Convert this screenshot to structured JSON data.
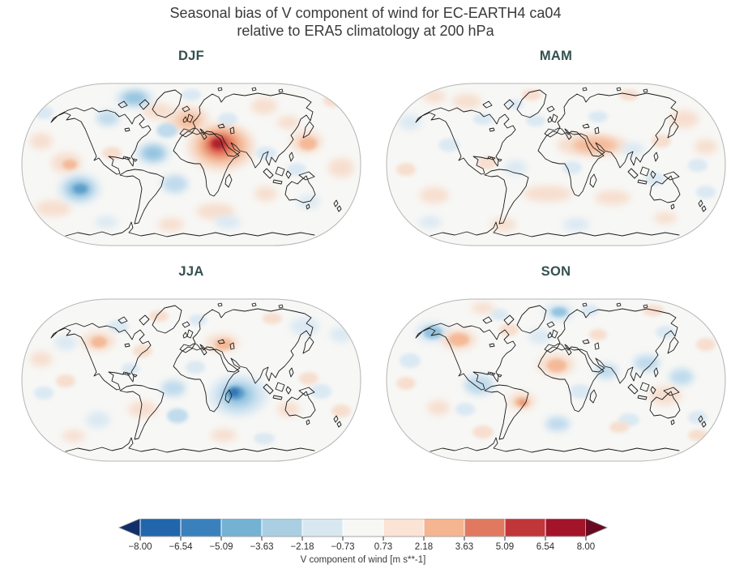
{
  "figure": {
    "title_line1": "Seasonal bias of V component of wind for EC-EARTH4 ca04",
    "title_line2": "relative to ERA5 climatology at 200 hPa"
  },
  "panels": [
    {
      "label": "DJF"
    },
    {
      "label": "MAM"
    },
    {
      "label": "JJA"
    },
    {
      "label": "SON"
    }
  ],
  "colorbar": {
    "label": "V component of wind [m s**-1]",
    "ticks": [
      "−8.00",
      "−6.54",
      "−5.09",
      "−3.63",
      "−2.18",
      "−0.73",
      "0.73",
      "2.18",
      "3.63",
      "5.09",
      "6.54",
      "8.00"
    ],
    "segment_colors": [
      "#2166ac",
      "#3a80bc",
      "#74b2d4",
      "#aacfe3",
      "#d7e8f1",
      "#f7f7f6",
      "#fbe3d5",
      "#f5b590",
      "#e07960",
      "#c13639",
      "#a31329"
    ],
    "under_color": "#11306b",
    "over_color": "#6a0a22",
    "tick_color": "#333333",
    "outline_color": "#8a8a8a"
  },
  "map": {
    "ocean_color": "#f7f7f5",
    "border_color": "#b5b5b5",
    "coast_color": "#1a1a1a",
    "palette": {
      "r1": "#f7ddcc",
      "r2": "#f3b795",
      "r3": "#e8896a",
      "r4": "#d0493f",
      "r5": "#ab1f2c",
      "b1": "#d9e8f2",
      "b2": "#bcd9ec",
      "b3": "#8fc1de",
      "b4": "#5b9cc9",
      "b5": "#2e6fb3"
    },
    "fields": {
      "DJF": [
        [
          247,
          92,
          42,
          30,
          "r1"
        ],
        [
          205,
          58,
          27,
          16,
          "r1"
        ],
        [
          168,
          48,
          18,
          10,
          "r1"
        ],
        [
          352,
          86,
          20,
          14,
          "r1"
        ],
        [
          300,
          42,
          16,
          10,
          "r1"
        ],
        [
          56,
          112,
          19,
          13,
          "r1"
        ],
        [
          25,
          85,
          14,
          10,
          "r1"
        ],
        [
          40,
          168,
          22,
          10,
          "r1"
        ],
        [
          112,
          100,
          12,
          8,
          "r1"
        ],
        [
          240,
          172,
          24,
          10,
          "r1"
        ],
        [
          395,
          118,
          16,
          12,
          "r1"
        ],
        [
          330,
          62,
          14,
          8,
          "r1"
        ],
        [
          385,
          35,
          12,
          8,
          "r1"
        ],
        [
          185,
          188,
          16,
          8,
          "r1"
        ],
        [
          302,
          150,
          14,
          9,
          "r1"
        ],
        [
          72,
          144,
          27,
          19,
          "b1"
        ],
        [
          140,
          32,
          24,
          12,
          "b1"
        ],
        [
          107,
          57,
          14,
          9,
          "b2"
        ],
        [
          180,
          72,
          13,
          9,
          "b2"
        ],
        [
          163,
          100,
          22,
          14,
          "b1"
        ],
        [
          190,
          138,
          16,
          11,
          "b2"
        ],
        [
          255,
          58,
          12,
          8,
          "b1"
        ],
        [
          302,
          100,
          13,
          8,
          "b1"
        ],
        [
          340,
          120,
          12,
          8,
          "b1"
        ],
        [
          255,
          185,
          16,
          8,
          "b1"
        ],
        [
          105,
          185,
          14,
          7,
          "b1"
        ],
        [
          28,
          50,
          12,
          8,
          "b1"
        ],
        [
          210,
          28,
          12,
          7,
          "b1"
        ],
        [
          355,
          160,
          14,
          8,
          "b1"
        ],
        [
          247,
          91,
          31,
          22,
          "r2"
        ],
        [
          246,
          90,
          21,
          15,
          "r3"
        ],
        [
          245,
          89,
          14,
          10,
          "r4"
        ],
        [
          243,
          88,
          8,
          6,
          "r5"
        ],
        [
          207,
          60,
          14,
          9,
          "r2"
        ],
        [
          354,
          88,
          11,
          8,
          "r2"
        ],
        [
          60,
          114,
          9,
          6,
          "r2"
        ],
        [
          163,
          100,
          14,
          9,
          "b3"
        ],
        [
          72,
          144,
          17,
          12,
          "b3"
        ],
        [
          73,
          144,
          9,
          6,
          "b4"
        ],
        [
          140,
          32,
          15,
          8,
          "b3"
        ]
      ],
      "MAM": [
        [
          255,
          90,
          44,
          14,
          "r1"
        ],
        [
          100,
          36,
          18,
          9,
          "r1"
        ],
        [
          60,
          30,
          14,
          8,
          "r1"
        ],
        [
          368,
          58,
          18,
          11,
          "r1"
        ],
        [
          395,
          92,
          14,
          9,
          "r1"
        ],
        [
          340,
          85,
          12,
          8,
          "r1"
        ],
        [
          60,
          152,
          18,
          10,
          "r1"
        ],
        [
          145,
          188,
          16,
          8,
          "r1"
        ],
        [
          200,
          150,
          30,
          10,
          "r1"
        ],
        [
          280,
          155,
          22,
          9,
          "r1"
        ],
        [
          180,
          28,
          12,
          7,
          "r1"
        ],
        [
          300,
          28,
          12,
          7,
          "r1"
        ],
        [
          25,
          120,
          12,
          8,
          "r1"
        ],
        [
          125,
          112,
          12,
          8,
          "r1"
        ],
        [
          345,
          180,
          14,
          7,
          "r1"
        ],
        [
          30,
          62,
          14,
          9,
          "b1"
        ],
        [
          78,
          90,
          13,
          8,
          "b1"
        ],
        [
          160,
          118,
          14,
          9,
          "b1"
        ],
        [
          230,
          118,
          12,
          8,
          "b1"
        ],
        [
          305,
          95,
          14,
          8,
          "b1"
        ],
        [
          332,
          132,
          12,
          8,
          "b1"
        ],
        [
          235,
          188,
          16,
          8,
          "b1"
        ],
        [
          120,
          58,
          12,
          7,
          "b1"
        ],
        [
          262,
          55,
          12,
          7,
          "b1"
        ],
        [
          395,
          148,
          12,
          8,
          "b1"
        ],
        [
          55,
          185,
          14,
          7,
          "b1"
        ],
        [
          185,
          60,
          12,
          7,
          "b1"
        ],
        [
          385,
          115,
          12,
          8,
          "b1"
        ],
        [
          160,
          40,
          10,
          6,
          "b1"
        ],
        [
          258,
          90,
          27,
          9,
          "r2"
        ]
      ],
      "JJA": [
        [
          268,
          133,
          36,
          26,
          "b1"
        ],
        [
          350,
          48,
          18,
          11,
          "b1"
        ],
        [
          395,
          58,
          14,
          9,
          "b1"
        ],
        [
          55,
          68,
          14,
          9,
          "b1"
        ],
        [
          120,
          48,
          13,
          8,
          "b1"
        ],
        [
          188,
          124,
          15,
          10,
          "b2"
        ],
        [
          193,
          158,
          13,
          9,
          "b2"
        ],
        [
          95,
          163,
          15,
          10,
          "b1"
        ],
        [
          135,
          100,
          11,
          7,
          "b1"
        ],
        [
          370,
          128,
          13,
          9,
          "b1"
        ],
        [
          300,
          186,
          13,
          7,
          "b1"
        ],
        [
          218,
          40,
          11,
          7,
          "b1"
        ],
        [
          28,
          130,
          12,
          8,
          "b1"
        ],
        [
          215,
          98,
          12,
          8,
          "b1"
        ],
        [
          95,
          66,
          21,
          12,
          "r1"
        ],
        [
          248,
          68,
          21,
          11,
          "r1"
        ],
        [
          150,
          78,
          12,
          8,
          "r1"
        ],
        [
          25,
          88,
          14,
          9,
          "r1"
        ],
        [
          150,
          150,
          18,
          10,
          "r1"
        ],
        [
          250,
          182,
          16,
          8,
          "r1"
        ],
        [
          330,
          150,
          14,
          9,
          "r1"
        ],
        [
          395,
          152,
          12,
          8,
          "r1"
        ],
        [
          65,
          183,
          14,
          7,
          "r1"
        ],
        [
          310,
          38,
          12,
          7,
          "r1"
        ],
        [
          170,
          35,
          12,
          7,
          "r1"
        ],
        [
          55,
          115,
          12,
          8,
          "r1"
        ],
        [
          355,
          112,
          12,
          8,
          "r1"
        ],
        [
          96,
          67,
          10,
          7,
          "r2"
        ],
        [
          250,
          70,
          11,
          7,
          "r2"
        ],
        [
          268,
          133,
          25,
          18,
          "b2"
        ],
        [
          267,
          132,
          17,
          12,
          "b3"
        ],
        [
          265,
          130,
          11,
          8,
          "b4"
        ],
        [
          263,
          129,
          6,
          5,
          "b5"
        ]
      ],
      "SON": [
        [
          213,
          30,
          19,
          11,
          "b1"
        ],
        [
          58,
          55,
          22,
          13,
          "b1"
        ],
        [
          115,
          120,
          18,
          12,
          "b2"
        ],
        [
          190,
          60,
          14,
          9,
          "b1"
        ],
        [
          240,
          128,
          13,
          9,
          "b1"
        ],
        [
          272,
          103,
          14,
          9,
          "b2"
        ],
        [
          322,
          93,
          16,
          10,
          "b2"
        ],
        [
          212,
          168,
          15,
          9,
          "b2"
        ],
        [
          300,
          163,
          13,
          8,
          "b1"
        ],
        [
          30,
          90,
          13,
          9,
          "b1"
        ],
        [
          365,
          110,
          15,
          10,
          "b2"
        ],
        [
          252,
          28,
          11,
          7,
          "b1"
        ],
        [
          140,
          33,
          11,
          7,
          "b1"
        ],
        [
          98,
          150,
          12,
          8,
          "b1"
        ],
        [
          385,
          160,
          12,
          8,
          "b1"
        ],
        [
          345,
          55,
          12,
          8,
          "b1"
        ],
        [
          90,
          64,
          22,
          13,
          "r1"
        ],
        [
          152,
          52,
          12,
          8,
          "r1"
        ],
        [
          210,
          95,
          23,
          14,
          "r1"
        ],
        [
          168,
          140,
          17,
          11,
          "r1"
        ],
        [
          345,
          133,
          20,
          12,
          "r1"
        ],
        [
          25,
          118,
          12,
          8,
          "r1"
        ],
        [
          65,
          148,
          14,
          9,
          "r1"
        ],
        [
          120,
          178,
          13,
          8,
          "r1"
        ],
        [
          262,
          58,
          11,
          7,
          "r1"
        ],
        [
          330,
          28,
          13,
          7,
          "r1"
        ],
        [
          395,
          70,
          12,
          8,
          "r1"
        ],
        [
          288,
          172,
          12,
          7,
          "r1"
        ],
        [
          385,
          182,
          12,
          7,
          "r1"
        ],
        [
          120,
          25,
          14,
          7,
          "r1"
        ],
        [
          90,
          64,
          13,
          8,
          "r2"
        ],
        [
          211,
          96,
          12,
          8,
          "r2"
        ],
        [
          168,
          141,
          9,
          6,
          "r2"
        ],
        [
          169,
          142,
          4,
          3,
          "r3"
        ],
        [
          214,
          30,
          10,
          6,
          "b3"
        ],
        [
          58,
          55,
          12,
          8,
          "b3"
        ]
      ]
    }
  },
  "chart_data": {
    "type": "heatmap",
    "title": "Seasonal bias of V component of wind for EC-EARTH4 ca04 relative to ERA5 climatology at 200 hPa",
    "variable": "V component of wind",
    "units": "m s**-1",
    "pressure_level_hPa": 200,
    "model": "EC-EARTH4 ca04",
    "reference": "ERA5 climatology",
    "projection": "Robinson",
    "panels": [
      "DJF",
      "MAM",
      "JJA",
      "SON"
    ],
    "colorbar_levels": [
      -8.0,
      -6.54,
      -5.09,
      -3.63,
      -2.18,
      -0.73,
      0.73,
      2.18,
      3.63,
      5.09,
      6.54,
      8.0
    ],
    "colormap": "diverging red-blue (RdBu_r), extended both ends",
    "legend_position": "bottom",
    "notable_features": {
      "DJF": "Strong positive bias (+6 to +8) over Sahara/Sahel Africa; moderate negative bias in southeast Pacific; positive patches over Europe and near Japan; negative patches near Greenland and equatorial Atlantic",
      "MAM": "Weak biases overall; light positive band from the Sahel across Arabia; scattered faint positive and negative patches",
      "JJA": "Strong negative bias (−6 to −8) over the western Indian Ocean east of Madagascar; light positive bias over the Middle East and northwest North America",
      "SON": "Moderate negative bias over Scandinavia and Gulf of Alaska; moderate positive bias over West Africa, the South Atlantic and Australia"
    }
  }
}
